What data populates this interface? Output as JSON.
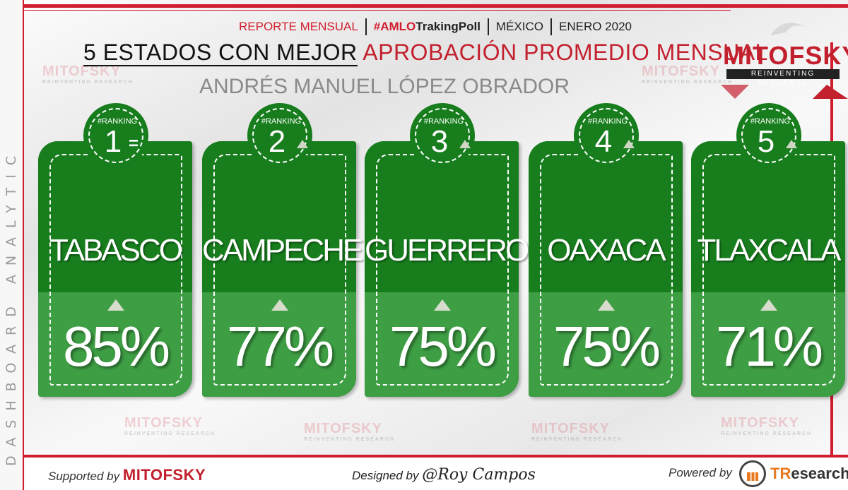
{
  "sidebar": {
    "text": "DASHBOARD ANALYTIC"
  },
  "header": {
    "report": "REPORTE MENSUAL",
    "hashtag_prefix": "#AMLO",
    "hashtag_suffix": "TrakingPoll",
    "country": "MÉXICO",
    "period": "ENERO 2020"
  },
  "title": {
    "part1": "5 ESTADOS CON MEJOR",
    "part2": "APROBACIÓN PROMEDIO MENSUAL",
    "subtitle": "ANDRÉS MANUEL LÓPEZ OBRADOR"
  },
  "logo": {
    "name": "MITOFSKY",
    "tagline": "REINVENTING RESEARCH"
  },
  "watermark": {
    "name": "MITOFSKY",
    "tagline": "REINVENTING RESEARCH"
  },
  "ranking_label": "#RANKING",
  "cards": [
    {
      "rank": "1",
      "trend": "equal",
      "state": "TABASCO",
      "approval": "85%",
      "approval_trend": "up"
    },
    {
      "rank": "2",
      "trend": "up",
      "state": "CAMPECHE",
      "approval": "77%",
      "approval_trend": "up"
    },
    {
      "rank": "3",
      "trend": "up",
      "state": "GUERRERO",
      "approval": "75%",
      "approval_trend": "up"
    },
    {
      "rank": "4",
      "trend": "up",
      "state": "OAXACA",
      "approval": "75%",
      "approval_trend": "up"
    },
    {
      "rank": "5",
      "trend": "up",
      "state": "TLAXCALA",
      "approval": "71%",
      "approval_trend": "up"
    }
  ],
  "footer": {
    "supported_prefix": "Supported by",
    "supported_name": "MITOFSKY",
    "designed_prefix": "Designed by",
    "designed_name": "@Roy Campos",
    "powered_prefix": "Powered by",
    "powered_name_a": "TR",
    "powered_name_b": "esearch"
  },
  "colors": {
    "brand_red": "#c3202e",
    "card_green": "#177d1d",
    "card_green_light": "#3e9e44"
  }
}
